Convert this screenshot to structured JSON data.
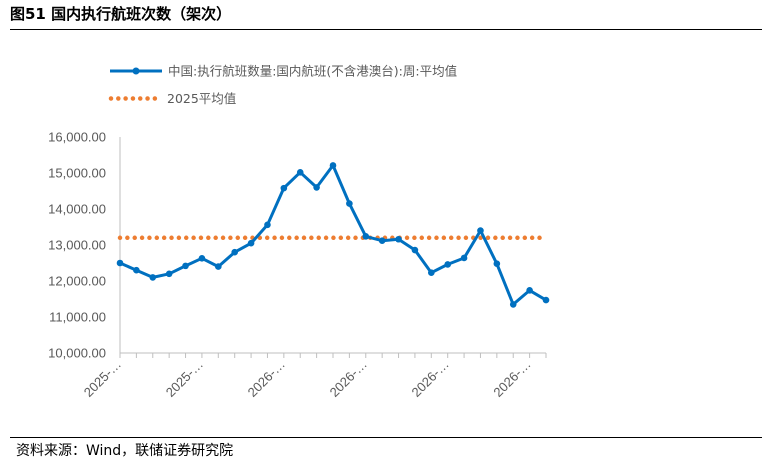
{
  "header": {
    "title": "图51 国内执行航班次数（架次）"
  },
  "footer": {
    "source": "资料来源：Wind，联储证券研究院"
  },
  "chart_data": {
    "type": "line",
    "title": "",
    "xlabel": "",
    "ylabel": "",
    "ylim": [
      10000,
      16000
    ],
    "yticks": [
      "16,000.00",
      "15,000.00",
      "14,000.00",
      "13,000.00",
      "12,000.00",
      "11,000.00",
      "10,000.00"
    ],
    "xtick_labels": [
      "2025-…",
      "2025-…",
      "2026-…",
      "2026-…",
      "2026-…",
      "2026-…"
    ],
    "legend_position": "top-left",
    "series": [
      {
        "name": "中国:执行航班数量:国内航班(不含港澳台):周:平均值",
        "color": "#0070C0",
        "style": "solid-marker",
        "values": [
          12500,
          12300,
          12100,
          12200,
          12420,
          12630,
          12400,
          12800,
          13050,
          13560,
          14580,
          15020,
          14600,
          15210,
          14150,
          13240,
          13120,
          13160,
          12860,
          12230,
          12460,
          12640,
          13400,
          12480,
          11350,
          11740,
          11470
        ]
      },
      {
        "name": "2025平均值",
        "color": "#ED7D31",
        "style": "dotted",
        "value": 13200
      }
    ]
  }
}
